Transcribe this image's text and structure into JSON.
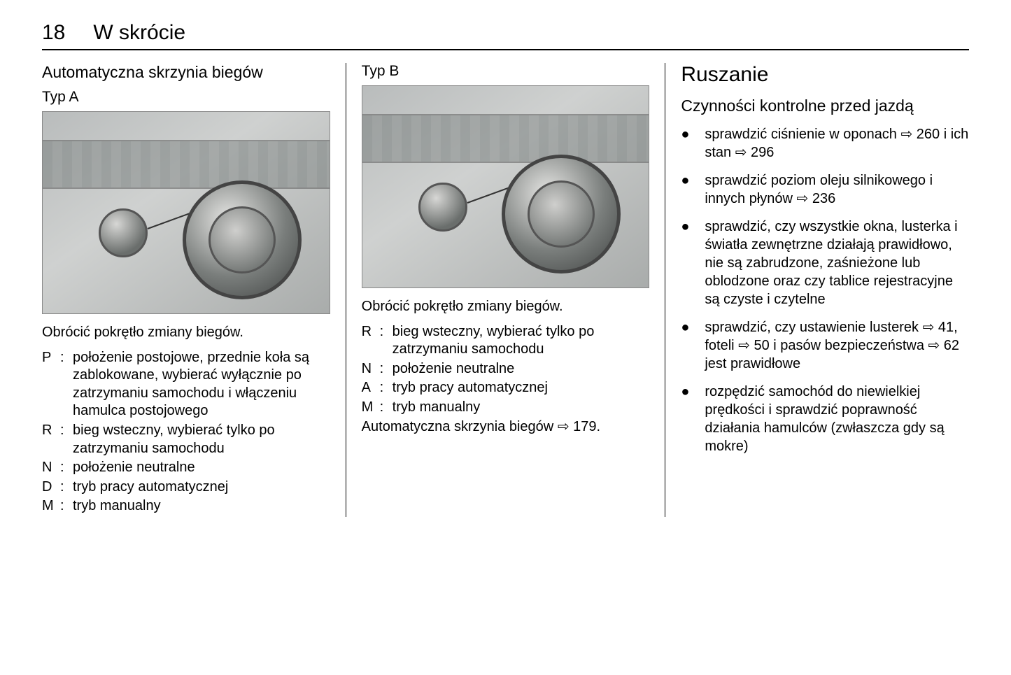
{
  "header": {
    "page_number": "18",
    "section": "W skrócie"
  },
  "col1": {
    "heading": "Automatyczna skrzynia biegów",
    "type_label": "Typ A",
    "instruction": "Obrócić pokrętło zmiany biegów.",
    "defs": [
      {
        "term": "P",
        "desc": "położenie postojowe, przednie koła są zablokowane, wybierać wyłącznie po zatrzymaniu samochodu i włączeniu hamulca postojowego"
      },
      {
        "term": "R",
        "desc": "bieg wsteczny, wybierać tylko po zatrzymaniu samochodu"
      },
      {
        "term": "N",
        "desc": "położenie neutralne"
      },
      {
        "term": "D",
        "desc": "tryb pracy automatycznej"
      },
      {
        "term": "M",
        "desc": "tryb manualny"
      }
    ]
  },
  "col2": {
    "type_label": "Typ B",
    "instruction": "Obrócić pokrętło zmiany biegów.",
    "defs": [
      {
        "term": "R",
        "desc": "bieg wsteczny, wybierać tylko po zatrzymaniu samochodu"
      },
      {
        "term": "N",
        "desc": "położenie neutralne"
      },
      {
        "term": "A",
        "desc": "tryb pracy automatycznej"
      },
      {
        "term": "M",
        "desc": "tryb manualny"
      }
    ],
    "footer_text": "Automatyczna skrzynia biegów ",
    "footer_ref": "⇨ 179."
  },
  "col3": {
    "heading_big": "Ruszanie",
    "heading_mid": "Czynności kontrolne przed jazdą",
    "items": [
      "sprawdzić ciśnienie w oponach ⇨ 260 i ich stan ⇨ 296",
      "sprawdzić poziom oleju silnikowego i innych płynów ⇨ 236",
      "sprawdzić, czy wszystkie okna, lusterka i światła zewnętrzne działają prawidłowo, nie są zabrudzone, zaśnieżone lub oblodzone oraz czy tablice rejestracyjne są czyste i czytelne",
      "sprawdzić, czy ustawienie lusterek ⇨ 41, foteli ⇨ 50 i pasów bezpieczeństwa ⇨ 62 jest prawidłowe",
      "rozpędzić samochód do niewielkiej prędkości i sprawdzić poprawność działania hamulców (zwłaszcza gdy są mokre)"
    ]
  },
  "bullet_glyph": "●"
}
